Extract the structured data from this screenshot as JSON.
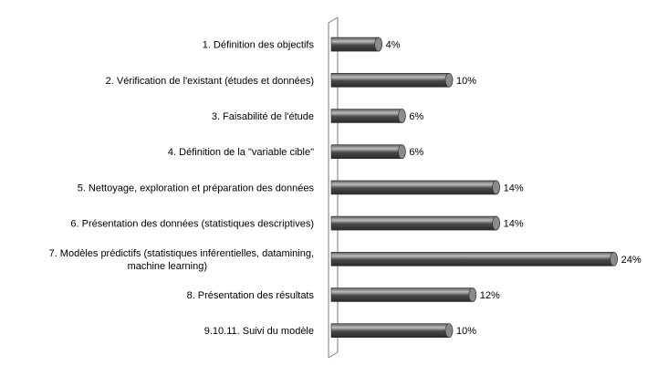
{
  "chart_data": {
    "type": "bar",
    "orientation": "horizontal",
    "style": "3d-cylinder",
    "categories": [
      [
        "1. Définition des objectifs"
      ],
      [
        "2. Vérification de l'existant (études et données)"
      ],
      [
        "3. Faisabilité  de l'étude"
      ],
      [
        "4. Définition de la \"variable cible\""
      ],
      [
        "5. Nettoyage,  exploration et préparation des données"
      ],
      [
        "6. Présentation des données (statistiques  descriptives)"
      ],
      [
        "7. Modèles prédictifs (statistiques  inférentielles, datamining,",
        "machine learning)"
      ],
      [
        "8. Présentation des résultats"
      ],
      [
        "9.10.11. Suivi du modèle"
      ]
    ],
    "values": [
      4,
      10,
      6,
      6,
      14,
      14,
      24,
      12,
      10
    ],
    "value_labels": [
      "4%",
      "10%",
      "6%",
      "6%",
      "14%",
      "14%",
      "24%",
      "12%",
      "10%"
    ],
    "unit": "%",
    "xlim": [
      0,
      24
    ],
    "grid": false,
    "legend": "none",
    "title": "",
    "xlabel": "",
    "ylabel": "",
    "colors": {
      "bar_dark": "#3a3a3a",
      "bar_mid": "#6e6e6e",
      "bar_highlight": "#bdbdbd",
      "bar_cap": "#8a8a8a",
      "wall": "#7a7a7a"
    }
  }
}
